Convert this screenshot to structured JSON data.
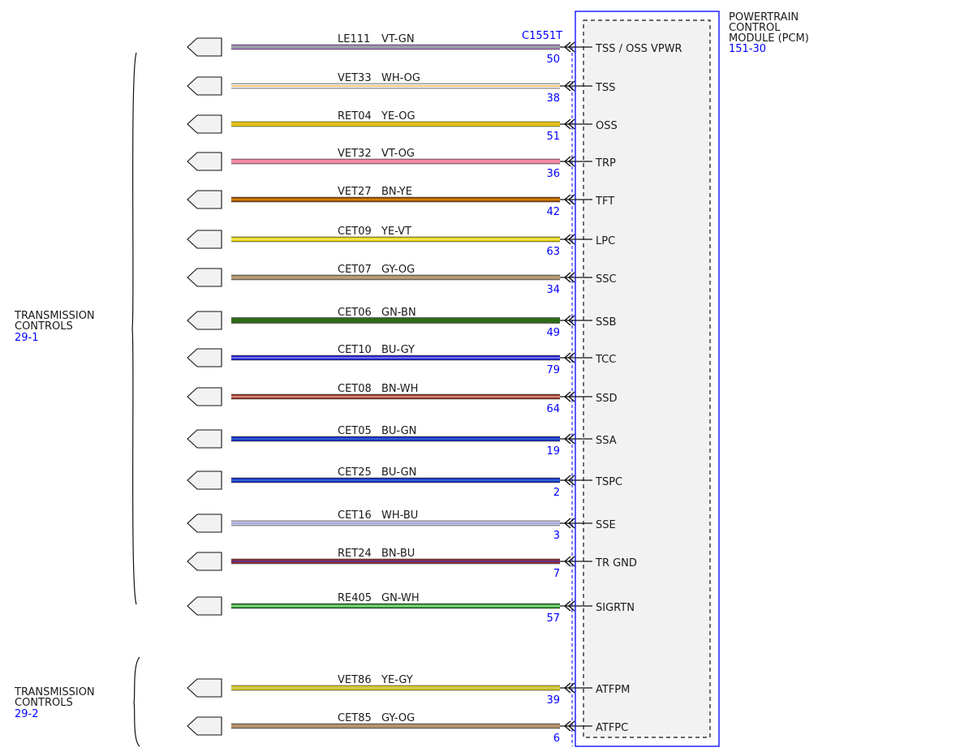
{
  "pcm": {
    "title_lines": [
      "POWERTRAIN",
      "CONTROL",
      "MODULE (PCM)"
    ],
    "ref": "151-30",
    "connector": "C1551T"
  },
  "groups": [
    {
      "lines": [
        "TRANSMISSION",
        "CONTROLS"
      ],
      "ref": "29-1"
    },
    {
      "lines": [
        "TRANSMISSION",
        "CONTROLS"
      ],
      "ref": "29-2"
    }
  ],
  "wires": [
    {
      "circuit": "LE111",
      "color_code": "VT-GN",
      "pin": "50",
      "signal": "TSS / OSS VPWR",
      "colors": [
        "#b084c8",
        "#7ab87a"
      ]
    },
    {
      "circuit": "VET33",
      "color_code": "WH-OG",
      "pin": "38",
      "signal": "TSS",
      "colors": [
        "#ffffff",
        "#f0a030"
      ]
    },
    {
      "circuit": "RET04",
      "color_code": "YE-OG",
      "pin": "51",
      "signal": "OSS",
      "colors": [
        "#e8d800",
        "#e89a30"
      ]
    },
    {
      "circuit": "VET32",
      "color_code": "VT-OG",
      "pin": "36",
      "signal": "TRP",
      "colors": [
        "#f48aa8",
        "#f48aa8"
      ]
    },
    {
      "circuit": "VET27",
      "color_code": "BN-YE",
      "pin": "42",
      "signal": "TFT",
      "colors": [
        "#a0520a",
        "#f0a000"
      ]
    },
    {
      "circuit": "CET09",
      "color_code": "YE-VT",
      "pin": "63",
      "signal": "LPC",
      "colors": [
        "#e8d800",
        "#f5e890"
      ]
    },
    {
      "circuit": "CET07",
      "color_code": "GY-OG",
      "pin": "34",
      "signal": "SSC",
      "colors": [
        "#a89070",
        "#c8a880"
      ]
    },
    {
      "circuit": "CET06",
      "color_code": "GN-BN",
      "pin": "49",
      "signal": "SSB",
      "colors": [
        "#2f6a1a",
        "#2f6a1a"
      ]
    },
    {
      "circuit": "CET10",
      "color_code": "BU-GY",
      "pin": "79",
      "signal": "TCC",
      "colors": [
        "#2020d0",
        "#a0a0ff"
      ]
    },
    {
      "circuit": "CET08",
      "color_code": "BN-WH",
      "pin": "64",
      "signal": "SSD",
      "colors": [
        "#a03828",
        "#f0c0b0"
      ]
    },
    {
      "circuit": "CET05",
      "color_code": "BU-GN",
      "pin": "19",
      "signal": "SSA",
      "colors": [
        "#1a2ad0",
        "#3a7ac0"
      ]
    },
    {
      "circuit": "CET25",
      "color_code": "BU-GN",
      "pin": "2",
      "signal": "TSPC",
      "colors": [
        "#1a2ad0",
        "#3a8ac0"
      ]
    },
    {
      "circuit": "CET16",
      "color_code": "WH-BU",
      "pin": "3",
      "signal": "SSE",
      "colors": [
        "#d8d8ee",
        "#8080e0"
      ]
    },
    {
      "circuit": "RET24",
      "color_code": "BN-BU",
      "pin": "7",
      "signal": "TR GND",
      "colors": [
        "#a03030",
        "#3030c0"
      ]
    },
    {
      "circuit": "RE405",
      "color_code": "GN-WH",
      "pin": "57",
      "signal": "SIGRTN",
      "colors": [
        "#2a9a2a",
        "#d0f0d0"
      ]
    },
    {
      "circuit": "VET86",
      "color_code": "YE-GY",
      "pin": "39",
      "signal": "ATFPM",
      "colors": [
        "#e8d800",
        "#b0b0b0"
      ]
    },
    {
      "circuit": "CET85",
      "color_code": "GY-OG",
      "pin": "6",
      "signal": "ATFPC",
      "colors": [
        "#a89070",
        "#d09060"
      ]
    }
  ],
  "style": {
    "pcm_blue": "#0000ff",
    "label_blue": "#0000ff",
    "pcm_fill": "#f2f2f2"
  }
}
